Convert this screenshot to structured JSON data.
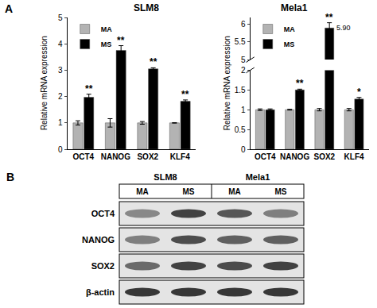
{
  "chart_data": [
    {
      "type": "bar",
      "title": "SLM8",
      "y_label": "Relative mRNA expression",
      "categories": [
        "OCT4",
        "NANOG",
        "SOX2",
        "KLF4"
      ],
      "series": [
        {
          "name": "MA",
          "color": "#b3b3b3",
          "values": [
            1,
            1,
            1,
            1
          ],
          "errors": [
            0.08,
            0.16,
            0.05,
            0.01
          ]
        },
        {
          "name": "MS",
          "color": "#000000",
          "values": [
            1.97,
            3.75,
            3.05,
            1.82
          ],
          "errors": [
            0.12,
            0.18,
            0.04,
            0.05
          ],
          "significance": [
            "**",
            "**",
            "**",
            "**"
          ]
        }
      ],
      "ylim": [
        0,
        5
      ],
      "yticks": [
        0,
        1,
        2,
        3,
        4,
        5
      ],
      "grid": false,
      "legend": "upper left"
    },
    {
      "type": "bar",
      "title": "Mela1",
      "y_label": "Relative mRNA expression",
      "categories": [
        "OCT4",
        "NANOG",
        "SOX2",
        "KLF4"
      ],
      "series": [
        {
          "name": "MA",
          "color": "#b3b3b3",
          "values": [
            1,
            1,
            1,
            1
          ],
          "errors": [
            0.02,
            0.01,
            0.03,
            0.03
          ]
        },
        {
          "name": "MS",
          "color": "#000000",
          "values": [
            1.0,
            1.5,
            5.9,
            1.27
          ],
          "errors": [
            0.02,
            0.02,
            0.15,
            0.04
          ],
          "significance": [
            null,
            "**",
            "**",
            "*"
          ],
          "value_labels": [
            null,
            null,
            "5.90",
            null
          ]
        }
      ],
      "ylim": [
        0,
        6.2
      ],
      "axis_break": [
        2,
        5
      ],
      "yticks": [
        0,
        0.5,
        1,
        1.5,
        2,
        5,
        5.5,
        6
      ],
      "grid": false,
      "legend": "upper left"
    }
  ],
  "panel_labels": [
    "A",
    "B"
  ],
  "blot": {
    "groups": [
      {
        "name": "SLM8",
        "lanes": [
          "MA",
          "MS"
        ]
      },
      {
        "name": "Mela1",
        "lanes": [
          "MA",
          "MS"
        ]
      }
    ],
    "rows": [
      {
        "label": "OCT4",
        "intensity": [
          0.45,
          0.8,
          0.7,
          0.5
        ]
      },
      {
        "label": "NANOG",
        "intensity": [
          0.5,
          0.75,
          0.65,
          0.65
        ]
      },
      {
        "label": "SOX2",
        "intensity": [
          0.6,
          0.8,
          0.75,
          0.8
        ]
      },
      {
        "label": "β-actin",
        "intensity": [
          0.85,
          0.85,
          0.85,
          0.85
        ]
      }
    ]
  }
}
